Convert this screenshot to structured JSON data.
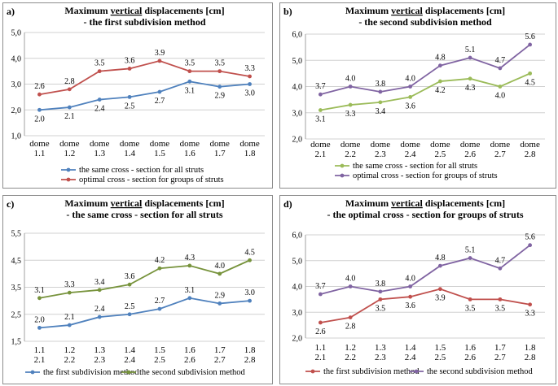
{
  "chart_data": [
    {
      "panel": "a)",
      "type": "line",
      "title_prefix": "Maximum ",
      "title_underlined": "vertical",
      "title_suffix": " displacements [cm]",
      "subtitle": "- the first subdivision method",
      "categories": [
        [
          "dome",
          "1.1"
        ],
        [
          "dome",
          "1.2"
        ],
        [
          "dome",
          "1.3"
        ],
        [
          "dome",
          "1.4"
        ],
        [
          "dome",
          "1.5"
        ],
        [
          "dome",
          "1.6"
        ],
        [
          "dome",
          "1.7"
        ],
        [
          "dome",
          "1.8"
        ]
      ],
      "ylim": [
        1.0,
        5.0
      ],
      "yticks": [
        "1,0",
        "2,0",
        "3,0",
        "4,0",
        "5,0"
      ],
      "series": [
        {
          "name": "the same cross - section for all struts",
          "color": "#4f81bd",
          "values": [
            2.0,
            2.1,
            2.4,
            2.5,
            2.7,
            3.1,
            2.9,
            3.0
          ],
          "labels": [
            "2.0",
            "2.1",
            "2.4",
            "2.5",
            "2.7",
            "3.1",
            "2.9",
            "3.0"
          ],
          "label_pos": "below"
        },
        {
          "name": "optimal cross - section for groups of struts",
          "color": "#c0504d",
          "values": [
            2.6,
            2.8,
            3.5,
            3.6,
            3.9,
            3.5,
            3.5,
            3.3
          ],
          "labels": [
            "2.6",
            "2.8",
            "3.5",
            "3.6",
            "3.9",
            "3.5",
            "3.5",
            "3.3"
          ],
          "label_pos": "above"
        }
      ]
    },
    {
      "panel": "b)",
      "type": "line",
      "title_prefix": "Maximum ",
      "title_underlined": "vertical",
      "title_suffix": " displacements [cm]",
      "subtitle": "- the second subdivision method",
      "categories": [
        [
          "dome",
          "2.1"
        ],
        [
          "dome",
          "2.2"
        ],
        [
          "dome",
          "2.3"
        ],
        [
          "dome",
          "2.4"
        ],
        [
          "dome",
          "2.5"
        ],
        [
          "dome",
          "2.6"
        ],
        [
          "dome",
          "2.7"
        ],
        [
          "dome",
          "2.8"
        ]
      ],
      "ylim": [
        2.0,
        6.0
      ],
      "yticks": [
        "2,0",
        "3,0",
        "4,0",
        "5,0",
        "6,0"
      ],
      "series": [
        {
          "name": "the same cross - section for all struts",
          "color": "#9bbb59",
          "values": [
            3.1,
            3.3,
            3.4,
            3.6,
            4.2,
            4.3,
            4.0,
            4.5
          ],
          "labels": [
            "3.1",
            "3.3",
            "3.4",
            "3.6",
            "4.2",
            "4.3",
            "4.0",
            "4.5"
          ],
          "label_pos": "below"
        },
        {
          "name": "optimal cross - section for groups of struts",
          "color": "#8064a2",
          "values": [
            3.7,
            4.0,
            3.8,
            4.0,
            4.8,
            5.1,
            4.7,
            5.6
          ],
          "labels": [
            "3.7",
            "4.0",
            "3.8",
            "4.0",
            "4.8",
            "5.1",
            "4.7",
            "5.6"
          ],
          "label_pos": "above"
        }
      ]
    },
    {
      "panel": "c)",
      "type": "line",
      "title_prefix": "Maximum ",
      "title_underlined": "vertical",
      "title_suffix": " displacements [cm]",
      "subtitle": "- the same cross - section for all struts",
      "categories": [
        [
          "1.1",
          "2.1"
        ],
        [
          "1.2",
          "2.2"
        ],
        [
          "1.3",
          "2.3"
        ],
        [
          "1.4",
          "2.4"
        ],
        [
          "1.5",
          "2.5"
        ],
        [
          "1.6",
          "2.6"
        ],
        [
          "1.7",
          "2.7"
        ],
        [
          "1.8",
          "2.8"
        ]
      ],
      "ylim": [
        1.5,
        5.5
      ],
      "yticks": [
        "1,5",
        "2,5",
        "3,5",
        "4,5",
        "5,5"
      ],
      "series": [
        {
          "name": "the first subdivision method",
          "color": "#4f81bd",
          "values": [
            2.0,
            2.1,
            2.4,
            2.5,
            2.7,
            3.1,
            2.9,
            3.0
          ],
          "labels": [
            "2.0",
            "2.1",
            "2.4",
            "2.5",
            "2.7",
            "3.1",
            "2.9",
            "3.0"
          ],
          "label_pos": "above"
        },
        {
          "name": "the second subdivision method",
          "color": "#77933c",
          "values": [
            3.1,
            3.3,
            3.4,
            3.6,
            4.2,
            4.3,
            4.0,
            4.5
          ],
          "labels": [
            "3.1",
            "3.3",
            "3.4",
            "3.6",
            "4.2",
            "4.3",
            "4.0",
            "4.5"
          ],
          "label_pos": "above"
        }
      ]
    },
    {
      "panel": "d)",
      "type": "line",
      "title_prefix": "Maximum ",
      "title_underlined": "vertical",
      "title_suffix": " displacements [cm]",
      "subtitle": "- the optimal cross - section for groups of struts",
      "categories": [
        [
          "1.1",
          "2.1"
        ],
        [
          "1.2",
          "2.2"
        ],
        [
          "1.3",
          "2.3"
        ],
        [
          "1.4",
          "2.4"
        ],
        [
          "1.5",
          "2.5"
        ],
        [
          "1.6",
          "2.6"
        ],
        [
          "1.7",
          "2.7"
        ],
        [
          "1.8",
          "2.8"
        ]
      ],
      "ylim": [
        2.0,
        6.0
      ],
      "yticks": [
        "2,0",
        "3,0",
        "4,0",
        "5,0",
        "6,0"
      ],
      "series": [
        {
          "name": "the first subdivision method",
          "color": "#c0504d",
          "values": [
            2.6,
            2.8,
            3.5,
            3.6,
            3.9,
            3.5,
            3.5,
            3.3
          ],
          "labels": [
            "2.6",
            "2.8",
            "3.5",
            "3.6",
            "3.9",
            "3.5",
            "3.5",
            "3.3"
          ],
          "label_pos": "below"
        },
        {
          "name": "the second subdivision method",
          "color": "#8064a2",
          "values": [
            3.7,
            4.0,
            3.8,
            4.0,
            4.8,
            5.1,
            4.7,
            5.6
          ],
          "labels": [
            "3.7",
            "4.0",
            "3.8",
            "4.0",
            "4.8",
            "5.1",
            "4.7",
            "5.6"
          ],
          "label_pos": "above"
        }
      ]
    }
  ]
}
